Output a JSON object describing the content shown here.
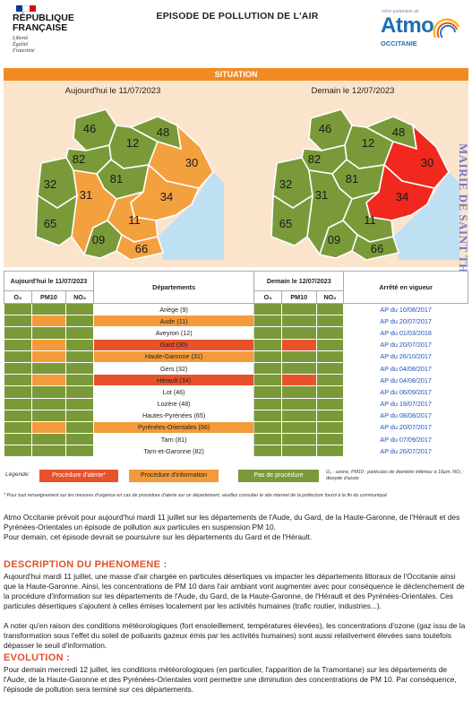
{
  "header": {
    "republic_line1": "RÉPUBLIQUE",
    "republic_line2": "FRANÇAISE",
    "motto": [
      "Liberté",
      "Égalité",
      "Fraternité"
    ],
    "title": "EPISODE DE POLLUTION DE L'AIR",
    "atmo_small": "votre partenaire air",
    "atmo_brand": "Atmo",
    "atmo_region": "OCCITANIE"
  },
  "situation": {
    "label": "SITUATION",
    "today_title": "Aujourd'hui le 11/07/2023",
    "tomorrow_title": "Demain le 12/07/2023",
    "dept_codes": [
      "46",
      "12",
      "48",
      "82",
      "81",
      "30",
      "32",
      "31",
      "34",
      "65",
      "09",
      "11",
      "66"
    ],
    "today_status": {
      "46": "green",
      "12": "green",
      "48": "green",
      "82": "green",
      "81": "green",
      "30": "orange",
      "32": "green",
      "31": "orange",
      "34": "orange",
      "65": "green",
      "09": "green",
      "11": "orange",
      "66": "orange"
    },
    "tomorrow_status": {
      "46": "green",
      "12": "green",
      "48": "green",
      "82": "green",
      "81": "green",
      "30": "red",
      "32": "green",
      "31": "green",
      "34": "red",
      "65": "green",
      "09": "green",
      "11": "green",
      "66": "green"
    }
  },
  "stamp_text": "MAIRIE DE SAINT THOMAS",
  "table": {
    "today_header": "Aujourd'hui le 11/07/2023",
    "tomorrow_header": "Demain le 12/07/2023",
    "departments_header": "Départements",
    "arrete_header": "Arrêté en vigueur",
    "pollutants": [
      "O₃",
      "PM10",
      "NO₂"
    ],
    "rows": [
      {
        "name": "Ariège (9)",
        "dep": "none",
        "today": [
          "green",
          "green",
          "green"
        ],
        "tomorrow": [
          "green",
          "green",
          "green"
        ],
        "arrete": "AP du 10/08/2017"
      },
      {
        "name": "Aude (11)",
        "dep": "orange",
        "today": [
          "green",
          "orange",
          "green"
        ],
        "tomorrow": [
          "green",
          "green",
          "green"
        ],
        "arrete": "AP du 20/07/2017"
      },
      {
        "name": "Aveyron (12)",
        "dep": "none",
        "today": [
          "green",
          "green",
          "green"
        ],
        "tomorrow": [
          "green",
          "green",
          "green"
        ],
        "arrete": "AP du 01/03/2018"
      },
      {
        "name": "Gard (30)",
        "dep": "red",
        "today": [
          "green",
          "orange",
          "green"
        ],
        "tomorrow": [
          "green",
          "red",
          "green"
        ],
        "arrete": "AP du 20/07/2017"
      },
      {
        "name": "Haute-Garonne (31)",
        "dep": "orange",
        "today": [
          "green",
          "orange",
          "green"
        ],
        "tomorrow": [
          "green",
          "green",
          "green"
        ],
        "arrete": "AP du 26/10/2017"
      },
      {
        "name": "Gers (32)",
        "dep": "none",
        "today": [
          "green",
          "green",
          "green"
        ],
        "tomorrow": [
          "green",
          "green",
          "green"
        ],
        "arrete": "AP du 04/08/2017"
      },
      {
        "name": "Hérault (34)",
        "dep": "red",
        "today": [
          "green",
          "orange",
          "green"
        ],
        "tomorrow": [
          "green",
          "red",
          "green"
        ],
        "arrete": "AP du 04/08/2017"
      },
      {
        "name": "Lot (46)",
        "dep": "none",
        "today": [
          "green",
          "green",
          "green"
        ],
        "tomorrow": [
          "green",
          "green",
          "green"
        ],
        "arrete": "AP du 06/09/2017"
      },
      {
        "name": "Lozère (48)",
        "dep": "none",
        "today": [
          "green",
          "green",
          "green"
        ],
        "tomorrow": [
          "green",
          "green",
          "green"
        ],
        "arrete": "AP du 19/07/2017"
      },
      {
        "name": "Hautes-Pyrénées (65)",
        "dep": "none",
        "today": [
          "green",
          "green",
          "green"
        ],
        "tomorrow": [
          "green",
          "green",
          "green"
        ],
        "arrete": "AP du 08/08/2017"
      },
      {
        "name": "Pyrénées-Orientales (66)",
        "dep": "orange",
        "today": [
          "green",
          "orange",
          "green"
        ],
        "tomorrow": [
          "green",
          "green",
          "green"
        ],
        "arrete": "AP du 20/07/2017"
      },
      {
        "name": "Tarn (81)",
        "dep": "none",
        "today": [
          "green",
          "green",
          "green"
        ],
        "tomorrow": [
          "green",
          "green",
          "green"
        ],
        "arrete": "AP du 07/09/2017"
      },
      {
        "name": "Tarn-et-Garonne (82)",
        "dep": "none",
        "today": [
          "green",
          "green",
          "green"
        ],
        "tomorrow": [
          "green",
          "green",
          "green"
        ],
        "arrete": "AP du 26/07/2017"
      }
    ]
  },
  "legend": {
    "label": "Légende:",
    "alert": "Procédure d'alerte*",
    "information": "Procédure d'information",
    "none": "Pas de procédure",
    "note": "O₃ : ozone, PM10 : particules de diamètre inférieur à 10µm, NO₂ : dioxyde d'azote"
  },
  "colors": {
    "green": "#7a9a3a",
    "orange": "#f39b3a",
    "red": "#e8522a",
    "accent": "#e0522a",
    "link": "#1f55b5"
  },
  "footnote": "* Pour tout renseignement sur les mesures d'urgence en cas de procédure d'alerte sur un département, veuillez consulter le site internet de la préfecture fourni à la fin du communiqué",
  "intro": "Atmo Occitanie prévoit pour aujourd'hui mardi 11 juillet sur les départements de l'Aude, du Gard, de la Haute-Garonne, de l'Hérault et des Pyrénées-Orientales un épisode de pollution aux particules en suspension PM 10.",
  "intro2": "Pour demain, cet épisode devrait se poursuivre sur les départements du Gard et de l'Hérault.",
  "description": {
    "heading": "DESCRIPTION DU PHENOMENE :",
    "p1": "Aujourd'hui mardi 11 juillet, une masse d'air chargée en particules désertiques va impacter les départements littoraux de l'Occitanie ainsi que la Haute-Garonne. Ainsi, les concentrations de PM 10 dans l'air ambiant vont augmenter avec pour conséquence le déclenchement de la procédure d'information sur les départements de l'Aude, du Gard, de la Haute-Garonne, de l'Hérault et des Pyrénées-Orientales. Ces particules désertiques s'ajoutent à celles émises localement par les activités humaines (trafic routier, industries...).",
    "p2": "A noter qu'en raison des conditions météorologiques (fort ensoleillement, températures élevées), les concentrations d'ozone (gaz issu de la transformation sous l'effet du soleil de polluants gazeux émis par les activités humaines) sont aussi relativement élevées sans toutefois dépasser le seuil d'information."
  },
  "evolution": {
    "heading": "EVOLUTION :",
    "p1": "Pour demain mercredi 12 juillet, les conditions météorologiques (en particulier, l'apparition de la Tramontane) sur les départements de l'Aude, de la Haute-Garonne et des Pyrénées-Orientales vont permettre une diminution des concentrations de PM 10. Par conséquence, l'épisode de pollution sera terminé sur ces départements."
  }
}
